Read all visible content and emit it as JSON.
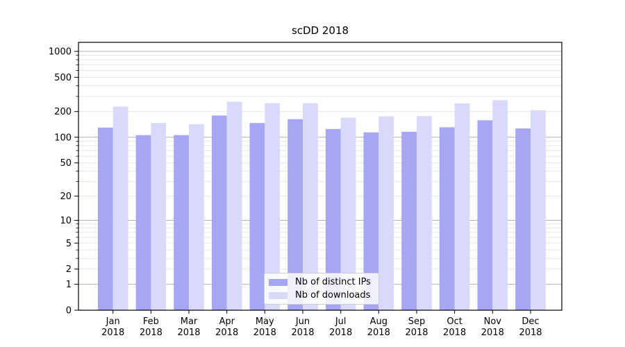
{
  "chart_data": {
    "type": "bar",
    "title": "scDD 2018",
    "categories": [
      "Jan 2018",
      "Feb 2018",
      "Mar 2018",
      "Apr 2018",
      "May 2018",
      "Jun 2018",
      "Jul 2018",
      "Aug 2018",
      "Sep 2018",
      "Oct 2018",
      "Nov 2018",
      "Dec 2018"
    ],
    "x_tick_months": [
      "Jan",
      "Feb",
      "Mar",
      "Apr",
      "May",
      "Jun",
      "Jul",
      "Aug",
      "Sep",
      "Oct",
      "Nov",
      "Dec"
    ],
    "x_tick_year": "2018",
    "series": [
      {
        "name": "Nb of distinct IPs",
        "color": "#a6a6f5",
        "values": [
          130,
          106,
          106,
          180,
          147,
          163,
          125,
          114,
          116,
          131,
          158,
          127
        ]
      },
      {
        "name": "Nb of downloads",
        "color": "#d9d9fb",
        "values": [
          228,
          147,
          142,
          260,
          250,
          250,
          169,
          176,
          177,
          249,
          271,
          207
        ]
      }
    ],
    "xlabel": "",
    "ylabel": "",
    "y_axis": {
      "scale": "log1p",
      "ylim": [
        0,
        1273
      ],
      "tick_labels": [
        0,
        1,
        2,
        5,
        10,
        20,
        50,
        100,
        200,
        500,
        1000
      ],
      "major_gridlines": [
        1,
        10,
        100,
        1000
      ],
      "minor_gridlines": [
        2,
        3,
        4,
        5,
        6,
        7,
        8,
        9,
        20,
        30,
        40,
        50,
        60,
        70,
        80,
        90,
        200,
        300,
        400,
        500,
        600,
        700,
        800,
        900
      ]
    },
    "legend": {
      "position": "lower-center",
      "entries": [
        "Nb of distinct IPs",
        "Nb of downloads"
      ]
    },
    "grid": true
  },
  "colors": {
    "background": "#ffffff",
    "bar_distinct_ips": "#a6a6f5",
    "bar_downloads": "#d9d9fb",
    "grid_major": "#b0b0b0",
    "grid_minor": "#e6e6e6",
    "spine": "#000000",
    "tick": "#000000",
    "text": "#000000",
    "legend_border": "#cccccc"
  }
}
